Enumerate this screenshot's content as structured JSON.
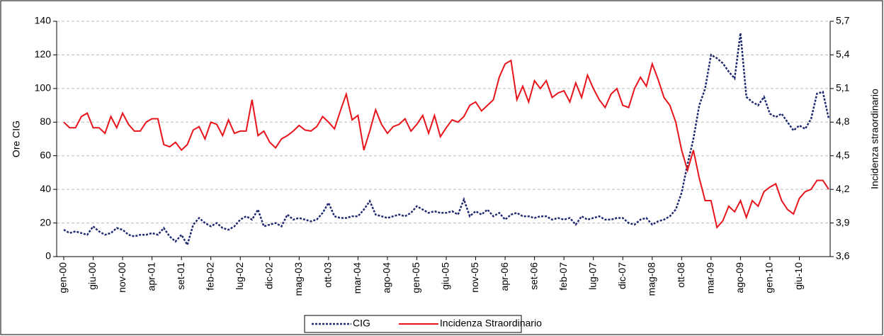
{
  "chart_data": {
    "type": "line",
    "y_label": "Ore CIG",
    "y2_label": "Incidenza straordinario",
    "categories": [
      "gen-00",
      null,
      null,
      null,
      null,
      "giu-00",
      null,
      null,
      null,
      null,
      "nov-00",
      null,
      null,
      null,
      null,
      "apr-01",
      null,
      null,
      null,
      null,
      "set-01",
      null,
      null,
      null,
      null,
      "feb-02",
      null,
      null,
      null,
      null,
      "lug-02",
      null,
      null,
      null,
      null,
      "dic-02",
      null,
      null,
      null,
      null,
      "mag-03",
      null,
      null,
      null,
      null,
      "ott-03",
      null,
      null,
      null,
      null,
      "mar-04",
      null,
      null,
      null,
      null,
      "ago-04",
      null,
      null,
      null,
      null,
      "gen-05",
      null,
      null,
      null,
      null,
      "giu-05",
      null,
      null,
      null,
      null,
      "nov-05",
      null,
      null,
      null,
      null,
      "apr-06",
      null,
      null,
      null,
      null,
      "set-06",
      null,
      null,
      null,
      null,
      "feb-07",
      null,
      null,
      null,
      null,
      "lug-07",
      null,
      null,
      null,
      null,
      "dic-07",
      null,
      null,
      null,
      null,
      "mag-08",
      null,
      null,
      null,
      null,
      "ott-08",
      null,
      null,
      null,
      null,
      "mar-09",
      null,
      null,
      null,
      null,
      "ago-09",
      null,
      null,
      null,
      null,
      "gen-10",
      null,
      null,
      null,
      null,
      "giu-10",
      null,
      null,
      null,
      null,
      null
    ],
    "series": [
      {
        "name": "CIG",
        "color": "#1f2a6e",
        "dash": true,
        "values": [
          16,
          14,
          15,
          14,
          13,
          18,
          15,
          13,
          14,
          17,
          16,
          13,
          12,
          13,
          13,
          14,
          13,
          17,
          12,
          9,
          13,
          7,
          19,
          23,
          20,
          18,
          20,
          17,
          16,
          18,
          22,
          24,
          22,
          28,
          18,
          19,
          20,
          18,
          25,
          22,
          23,
          22,
          21,
          22,
          26,
          32,
          24,
          23,
          23,
          24,
          24,
          28,
          33,
          25,
          24,
          23,
          24,
          25,
          24,
          26,
          30,
          28,
          26,
          27,
          26,
          26,
          27,
          25,
          34,
          24,
          27,
          25,
          28,
          24,
          26,
          22,
          25,
          26,
          24,
          24,
          23,
          24,
          24,
          22,
          23,
          22,
          23,
          19,
          24,
          22,
          23,
          24,
          22,
          22,
          23,
          23,
          20,
          19,
          22,
          23,
          19,
          21,
          22,
          24,
          28,
          38,
          55,
          70,
          90,
          100,
          120,
          118,
          115,
          110,
          106,
          133,
          95,
          92,
          90,
          95,
          85,
          83,
          85,
          80,
          75,
          78,
          76,
          82,
          97,
          98,
          82
        ]
      },
      {
        "name": "Incidenza Straordinario",
        "color": "#e8141c",
        "axis": "y2",
        "values": [
          4.8,
          4.75,
          4.75,
          4.85,
          4.88,
          4.75,
          4.75,
          4.7,
          4.85,
          4.75,
          4.88,
          4.78,
          4.72,
          4.72,
          4.8,
          4.83,
          4.83,
          4.6,
          4.58,
          4.62,
          4.55,
          4.6,
          4.73,
          4.76,
          4.65,
          4.8,
          4.78,
          4.68,
          4.82,
          4.7,
          4.72,
          4.72,
          5.0,
          4.68,
          4.72,
          4.62,
          4.57,
          4.65,
          4.68,
          4.72,
          4.77,
          4.73,
          4.72,
          4.76,
          4.85,
          4.8,
          4.74,
          4.9,
          5.05,
          4.82,
          4.86,
          4.55,
          4.72,
          4.91,
          4.78,
          4.7,
          4.76,
          4.78,
          4.83,
          4.72,
          4.78,
          4.86,
          4.7,
          4.86,
          4.67,
          4.75,
          4.82,
          4.8,
          4.85,
          4.95,
          4.98,
          4.9,
          4.95,
          5.0,
          5.2,
          5.32,
          5.35,
          5.0,
          5.12,
          4.98,
          5.17,
          5.1,
          5.17,
          5.02,
          5.06,
          5.08,
          4.98,
          5.15,
          5.02,
          5.22,
          5.1,
          5.0,
          4.93,
          5.05,
          5.1,
          4.95,
          4.93,
          5.1,
          5.2,
          5.12,
          5.32,
          5.18,
          5.02,
          4.95,
          4.8,
          4.55,
          4.37,
          4.55,
          4.3,
          4.1,
          4.1,
          3.86,
          3.92,
          4.05,
          4.0,
          4.1,
          3.95,
          4.1,
          4.05,
          4.18,
          4.22,
          4.25,
          4.1,
          4.02,
          3.98,
          4.12,
          4.18,
          4.2,
          4.28,
          4.28,
          4.2
        ]
      }
    ],
    "ylim": [
      0,
      140
    ],
    "yticks": [
      0,
      20,
      40,
      60,
      80,
      100,
      120,
      140
    ],
    "y2lim": [
      3.6,
      5.7
    ],
    "y2ticks": [
      {
        "value": 3.6,
        "label": "3,6"
      },
      {
        "value": 3.9,
        "label": "3,9"
      },
      {
        "value": 4.2,
        "label": "4,2"
      },
      {
        "value": 4.5,
        "label": "4,5"
      },
      {
        "value": 4.8,
        "label": "4,8"
      },
      {
        "value": 5.1,
        "label": "5,1"
      },
      {
        "value": 5.4,
        "label": "5,4"
      },
      {
        "value": 5.7,
        "label": "5,7"
      }
    ],
    "grid": true,
    "legend": "bottom"
  }
}
